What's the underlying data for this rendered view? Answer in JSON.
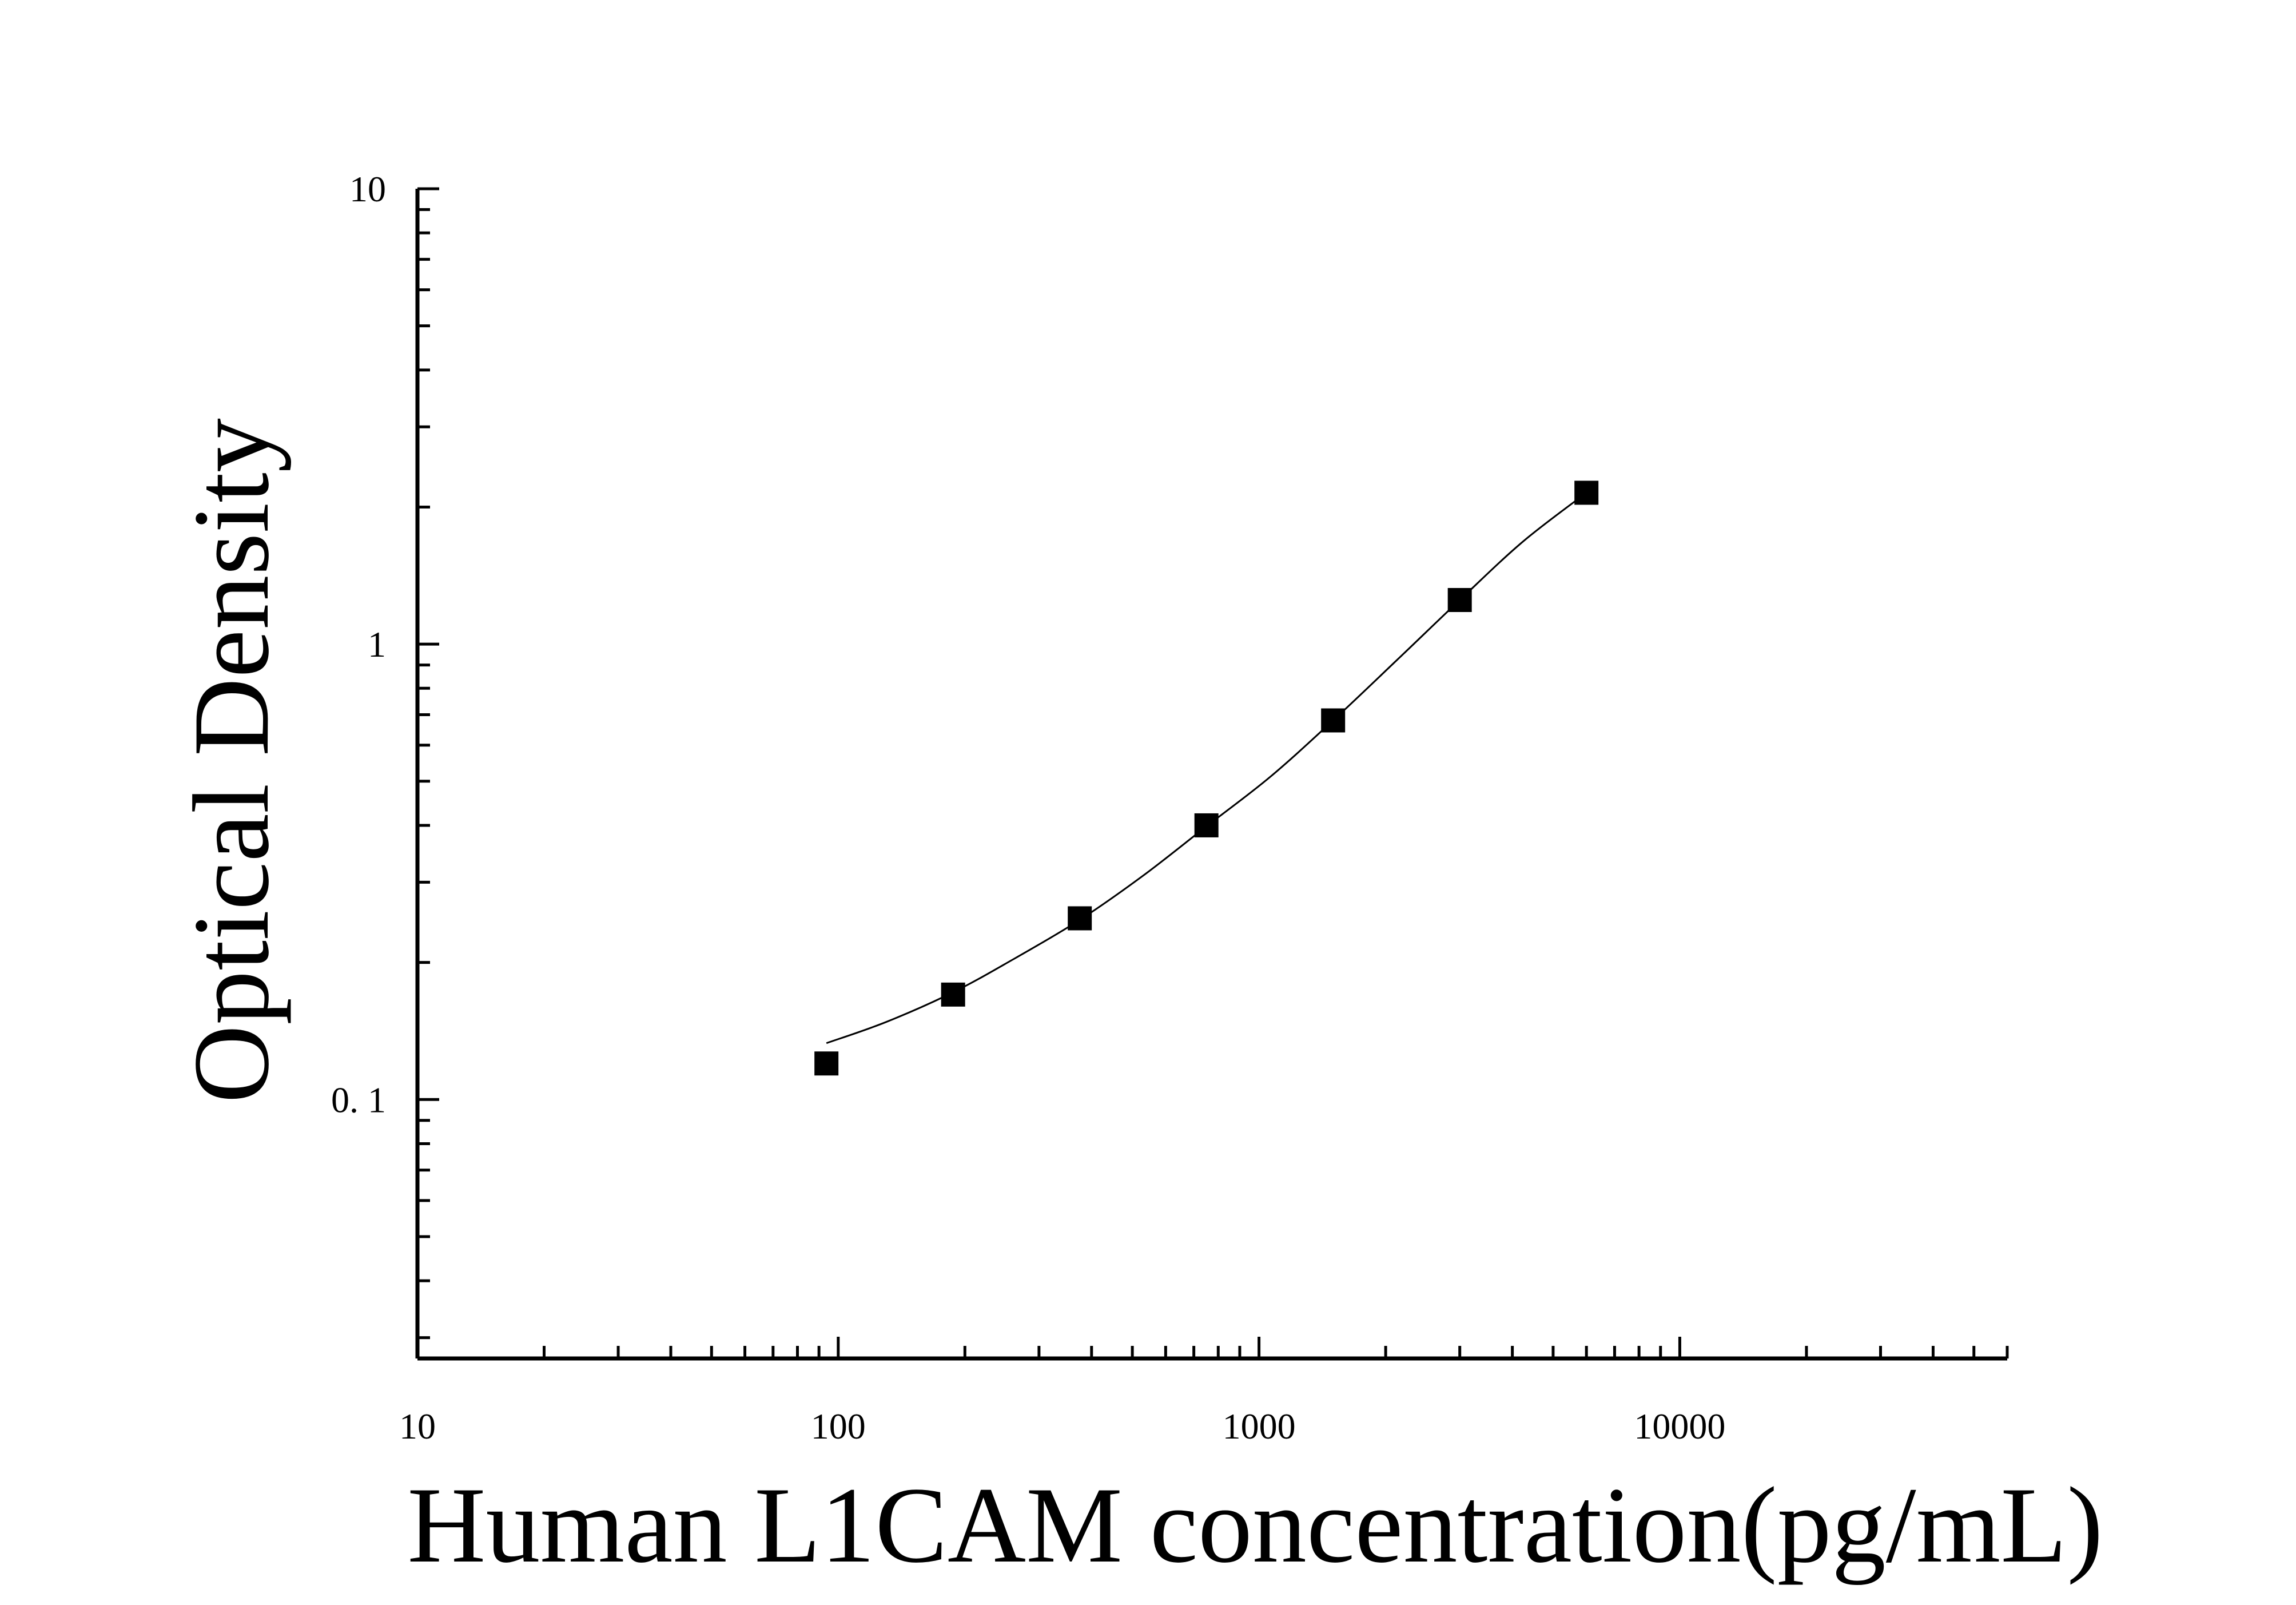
{
  "chart_data": {
    "type": "scatter",
    "xlabel": "Human L1CAM concentration(pg/mL)",
    "ylabel": "Optical Density",
    "x_scale": "log",
    "y_scale": "log",
    "xlim": [
      10,
      60000
    ],
    "ylim": [
      0.027,
      10
    ],
    "grid": false,
    "x_ticks": [
      {
        "value": 10,
        "label": "10"
      },
      {
        "value": 100,
        "label": "100"
      },
      {
        "value": 1000,
        "label": "1000"
      },
      {
        "value": 10000,
        "label": "10000"
      }
    ],
    "y_ticks": [
      {
        "value": 10,
        "label": "10"
      },
      {
        "value": 1,
        "label": "1"
      },
      {
        "value": 0.1,
        "label": "0. 1"
      }
    ],
    "series": [
      {
        "marker": "square",
        "color": "#000000",
        "points": [
          {
            "x": 93.75,
            "y": 0.12
          },
          {
            "x": 187.5,
            "y": 0.17
          },
          {
            "x": 375,
            "y": 0.25
          },
          {
            "x": 750,
            "y": 0.4
          },
          {
            "x": 1500,
            "y": 0.68
          },
          {
            "x": 3000,
            "y": 1.25
          },
          {
            "x": 6000,
            "y": 2.15
          }
        ]
      }
    ],
    "fit_curve": {
      "color": "#000000",
      "points": [
        {
          "x": 93.75,
          "y": 0.133
        },
        {
          "x": 130,
          "y": 0.148
        },
        {
          "x": 187.5,
          "y": 0.172
        },
        {
          "x": 260,
          "y": 0.203
        },
        {
          "x": 375,
          "y": 0.248
        },
        {
          "x": 530,
          "y": 0.31
        },
        {
          "x": 750,
          "y": 0.398
        },
        {
          "x": 1060,
          "y": 0.51
        },
        {
          "x": 1500,
          "y": 0.68
        },
        {
          "x": 2120,
          "y": 0.92
        },
        {
          "x": 3000,
          "y": 1.25
        },
        {
          "x": 4240,
          "y": 1.68
        },
        {
          "x": 6000,
          "y": 2.15
        }
      ]
    }
  }
}
